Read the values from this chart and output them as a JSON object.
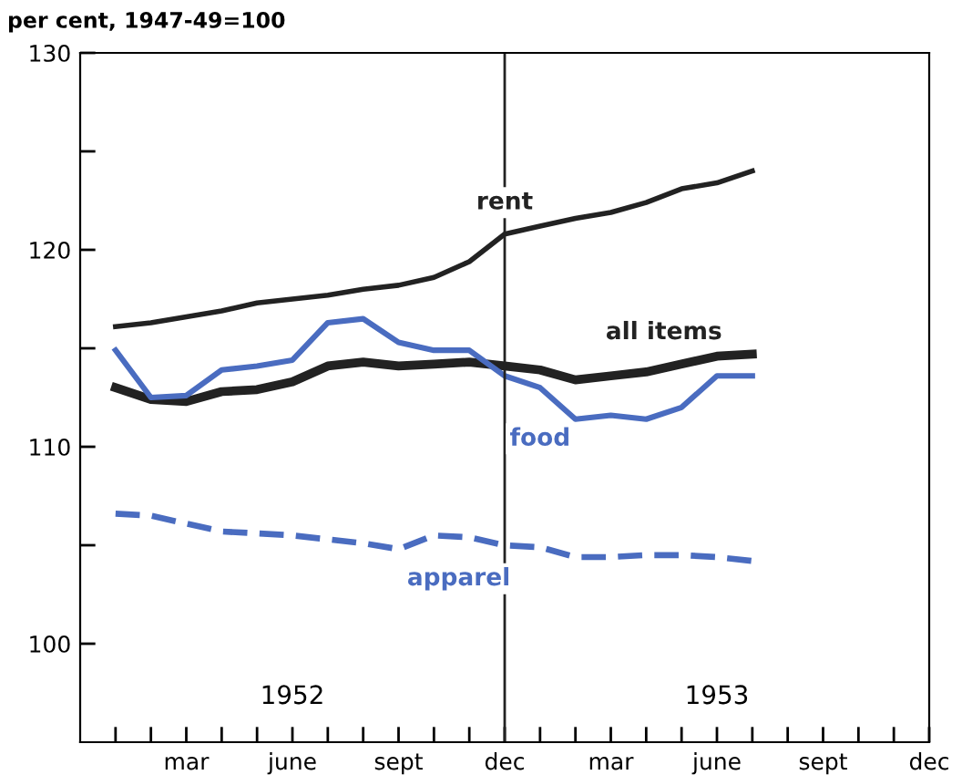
{
  "chart_data": {
    "type": "line",
    "ylabel": "per cent, 1947-49=100",
    "x": [
      "1952-01",
      "1952-02",
      "1952-03",
      "1952-04",
      "1952-05",
      "1952-06",
      "1952-07",
      "1952-08",
      "1952-09",
      "1952-10",
      "1952-11",
      "1952-12",
      "1953-01",
      "1953-02",
      "1953-03",
      "1953-04",
      "1953-05",
      "1953-06",
      "1953-07"
    ],
    "series": [
      {
        "name": "rent",
        "color": "#222222",
        "values": [
          116.1,
          116.3,
          116.6,
          116.9,
          117.3,
          117.5,
          117.7,
          118.0,
          118.2,
          118.6,
          119.4,
          120.8,
          121.2,
          121.6,
          121.9,
          122.4,
          123.1,
          123.4,
          124.0
        ]
      },
      {
        "name": "all items",
        "color": "#222222",
        "values": [
          113.0,
          112.4,
          112.3,
          112.8,
          112.9,
          113.3,
          114.1,
          114.3,
          114.1,
          114.2,
          114.3,
          114.1,
          113.9,
          113.4,
          113.6,
          113.8,
          114.2,
          114.6,
          114.7
        ]
      },
      {
        "name": "food",
        "color": "#4a6cc0",
        "values": [
          114.9,
          112.5,
          112.6,
          113.9,
          114.1,
          114.4,
          116.3,
          116.5,
          115.3,
          114.9,
          114.9,
          113.6,
          113.0,
          111.4,
          111.6,
          111.4,
          112.0,
          113.6,
          113.6
        ]
      },
      {
        "name": "apparel",
        "color": "#4a6cc0",
        "line_style": "dashed",
        "values": [
          106.6,
          106.5,
          106.1,
          105.7,
          105.6,
          105.5,
          105.3,
          105.1,
          104.8,
          105.5,
          105.4,
          105.0,
          104.9,
          104.4,
          104.4,
          104.5,
          104.5,
          104.4,
          104.2
        ]
      }
    ],
    "ylim": [
      95,
      130
    ],
    "yticks": [
      {
        "value": 100,
        "label": "100"
      },
      {
        "value": 105,
        "label": null
      },
      {
        "value": 110,
        "label": "110"
      },
      {
        "value": 115,
        "label": null
      },
      {
        "value": 120,
        "label": "120"
      },
      {
        "value": 125,
        "label": null
      },
      {
        "value": 130,
        "label": "130"
      }
    ],
    "xlim": [
      "1951-12",
      "1953-12"
    ],
    "xticks": [
      {
        "value": "1952-01",
        "label": null
      },
      {
        "value": "1952-02",
        "label": null
      },
      {
        "value": "1952-03",
        "label": "mar"
      },
      {
        "value": "1952-04",
        "label": null
      },
      {
        "value": "1952-05",
        "label": null
      },
      {
        "value": "1952-06",
        "label": "june"
      },
      {
        "value": "1952-07",
        "label": null
      },
      {
        "value": "1952-08",
        "label": null
      },
      {
        "value": "1952-09",
        "label": "sept"
      },
      {
        "value": "1952-10",
        "label": null
      },
      {
        "value": "1952-11",
        "label": null
      },
      {
        "value": "1952-12",
        "label": "dec"
      },
      {
        "value": "1953-01",
        "label": null
      },
      {
        "value": "1953-02",
        "label": null
      },
      {
        "value": "1953-03",
        "label": "mar"
      },
      {
        "value": "1953-04",
        "label": null
      },
      {
        "value": "1953-05",
        "label": null
      },
      {
        "value": "1953-06",
        "label": "june"
      },
      {
        "value": "1953-07",
        "label": null
      },
      {
        "value": "1953-08",
        "label": null
      },
      {
        "value": "1953-09",
        "label": "sept"
      },
      {
        "value": "1953-10",
        "label": null
      },
      {
        "value": "1953-11",
        "label": null
      },
      {
        "value": "1953-12",
        "label": "dec"
      }
    ],
    "ref_lines": [
      {
        "axis": "x",
        "value": "1952-12",
        "color": "#222222"
      }
    ],
    "annotations": [
      "1952",
      "1953"
    ],
    "grid": false,
    "legend": false
  }
}
